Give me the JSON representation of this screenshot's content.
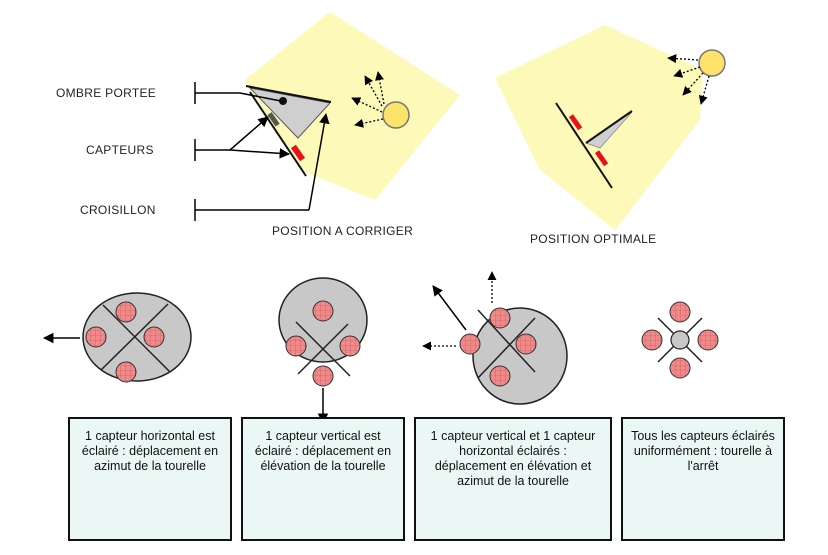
{
  "labels": {
    "ombre_portee": "OMBRE PORTEE",
    "capteurs": "CAPTEURS",
    "croisillon": "CROISILLON",
    "position_a_corriger": "POSITION A CORRIGER",
    "position_optimale": "POSITION OPTIMALE"
  },
  "boxes": [
    {
      "text": "1 capteur horizontal est éclairé : déplacement en azimut de la tourelle"
    },
    {
      "text": "1 capteur vertical est éclairé : déplacement en élévation de la tourelle"
    },
    {
      "text": "1 capteur vertical et 1 capteur horizontal éclairés : déplacement en élévation et azimut de la tourelle"
    },
    {
      "text": "Tous les capteurs éclairés uniformément : tourelle à l'arrêt"
    }
  ],
  "colors": {
    "light_beam": "#fdf9b8",
    "sun": "#fde36a",
    "sensor_red": "#e8101a",
    "sensor_pink": "#f08a8a",
    "disc_grey": "#c8c8c8",
    "box_fill": "#eaf7f4"
  }
}
